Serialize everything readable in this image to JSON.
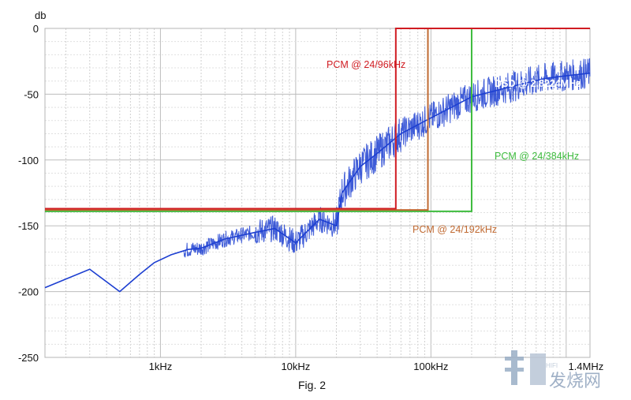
{
  "chart_data": {
    "type": "line",
    "title": "",
    "xlabel": "",
    "ylabel": "db",
    "x_scale": "log",
    "xlim": [
      140,
      1500000
    ],
    "ylim": [
      -250,
      0
    ],
    "y_ticks": [
      0,
      -50,
      -100,
      -150,
      -200,
      -250
    ],
    "x_ticks": [
      {
        "value": 1000,
        "label": "1kHz"
      },
      {
        "value": 10000,
        "label": "10kHz"
      },
      {
        "value": 100000,
        "label": "100kHz"
      },
      {
        "value": 1400000,
        "label": "1.4MHz"
      }
    ],
    "grid": true,
    "caption": "Fig. 2",
    "series": [
      {
        "name": "PCM @ 24/96kHz",
        "color": "#d01c22",
        "points": [
          [
            140,
            -137
          ],
          [
            55000,
            -137
          ],
          [
            55000,
            0
          ],
          [
            1500000,
            0
          ]
        ]
      },
      {
        "name": "PCM @ 24/192kHz",
        "color": "#c06a32",
        "points": [
          [
            140,
            -138
          ],
          [
            95000,
            -138
          ],
          [
            95000,
            0
          ],
          [
            1500000,
            0
          ]
        ]
      },
      {
        "name": "PCM @ 24/384kHz",
        "color": "#3dbb3d",
        "points": [
          [
            140,
            -139
          ],
          [
            200000,
            -139
          ],
          [
            200000,
            0
          ],
          [
            1500000,
            0
          ]
        ]
      },
      {
        "name": "DSD @ 2.8224MHz",
        "color": "#1d3fd1",
        "points": [
          [
            140,
            -197
          ],
          [
            300,
            -183
          ],
          [
            500,
            -200
          ],
          [
            700,
            -187
          ],
          [
            900,
            -178
          ],
          [
            1200,
            -172
          ],
          [
            1600,
            -168
          ],
          [
            2000,
            -167
          ],
          [
            3000,
            -160
          ],
          [
            5000,
            -155
          ],
          [
            7000,
            -152
          ],
          [
            10000,
            -163
          ],
          [
            15000,
            -145
          ],
          [
            20000,
            -150
          ],
          [
            22000,
            -125
          ],
          [
            30000,
            -105
          ],
          [
            40000,
            -95
          ],
          [
            60000,
            -80
          ],
          [
            100000,
            -68
          ],
          [
            200000,
            -52
          ],
          [
            400000,
            -44
          ],
          [
            700000,
            -38
          ],
          [
            1000000,
            -36
          ],
          [
            1500000,
            -34
          ]
        ]
      }
    ],
    "annotations": [
      {
        "text": "PCM @ 24/96kHz",
        "color": "#d01c22"
      },
      {
        "text": "DSD @ 2.8224MHz",
        "color": "#ffffff"
      },
      {
        "text": "PCM @ 24/384kHz",
        "color": "#3dbb3d"
      },
      {
        "text": "PCM @ 24/192kHz",
        "color": "#c06a32"
      }
    ]
  },
  "watermark": {
    "text": "发烧网",
    "small_text": "HIFI"
  }
}
